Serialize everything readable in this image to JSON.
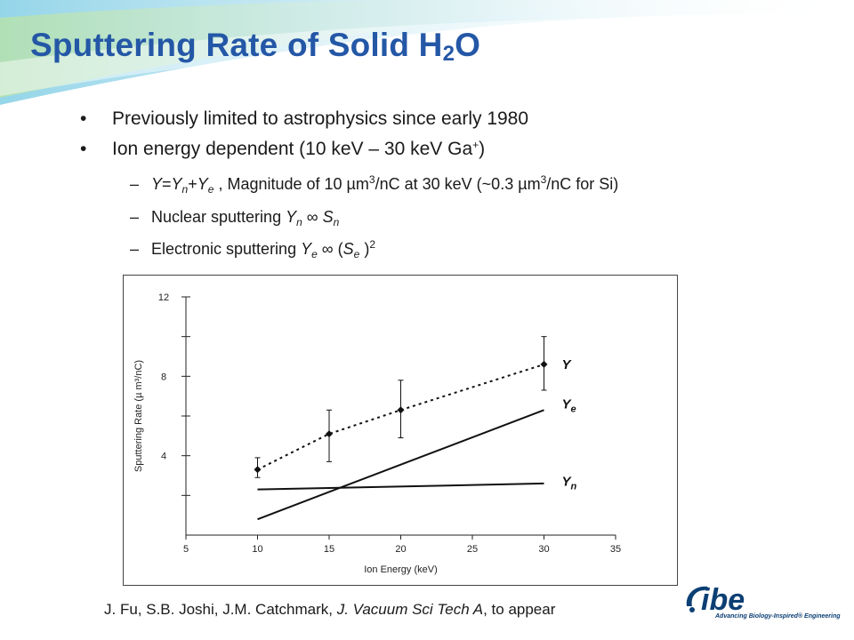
{
  "slide": {
    "title_main": "Sputtering Rate of Solid H",
    "title_sub": "2",
    "title_end": "O"
  },
  "bullets": [
    {
      "text": "Previously limited to astrophysics since early 1980"
    },
    {
      "text_a": "Ion energy dependent (10 keV – 30 keV Ga",
      "sup": "+",
      "text_b": ")"
    }
  ],
  "sub_bullets": {
    "dash": "–",
    "bullet_marker": "•",
    "eq": {
      "Y": "Y",
      "eq_sign": "=",
      "Yn_Y": "Y",
      "n": "n",
      "plus": "+",
      "Ye_Y": "Y",
      "e": "e",
      "rest_a": " , Magnitude of 10 µm",
      "sup3": "3",
      "rest_b": "/nC at 30 keV (~0.3 µm",
      "sup3b": "3",
      "rest_c": "/nC for Si)"
    },
    "nuclear": {
      "label": "Nuclear sputtering ",
      "Y": "Y",
      "n": "n",
      "prop": " ∞ ",
      "S": "S",
      "n2": "n"
    },
    "electronic": {
      "label": "Electronic sputtering ",
      "Y": "Y",
      "e": "e",
      "prop": " ∞ (",
      "S": "S",
      "e2": "e",
      "close": " )",
      "sup2": "2"
    }
  },
  "chart_data": {
    "type": "line",
    "xlabel": "Ion Energy (keV)",
    "ylabel": "Sputtering Rate (µ m³/nC)",
    "xlim": [
      5,
      35
    ],
    "ylim": [
      0,
      12
    ],
    "x_ticks": [
      5,
      10,
      15,
      20,
      25,
      30,
      35
    ],
    "y_ticks_labeled": [
      4,
      8,
      12
    ],
    "y_ticks_minor": [
      2,
      6,
      10
    ],
    "grid": false,
    "legend": "inline-right",
    "series": [
      {
        "name": "Y",
        "style": "dotted-with-markers",
        "x": [
          10,
          15,
          20,
          30
        ],
        "y": [
          3.3,
          5.1,
          6.3,
          8.6
        ],
        "err_low": [
          2.9,
          3.7,
          4.9,
          7.3
        ],
        "err_high": [
          3.9,
          6.3,
          7.8,
          10.0
        ]
      },
      {
        "name": "Ye",
        "label_base": "Y",
        "label_sub": "e",
        "style": "solid",
        "x": [
          10,
          30
        ],
        "y": [
          0.8,
          6.3
        ]
      },
      {
        "name": "Yn",
        "label_base": "Y",
        "label_sub": "n",
        "style": "solid",
        "x": [
          10,
          30
        ],
        "y": [
          2.3,
          2.6
        ]
      }
    ]
  },
  "citation": {
    "authors": "J. Fu, S.B. Joshi, J.M. Catchmark, ",
    "journal": "J. Vacuum Sci Tech A",
    "tail": ", to appear"
  },
  "logo": {
    "text": "ibe",
    "tagline": "Advancing Biology-Inspired® Engineering"
  },
  "colors": {
    "title": "#2457a6",
    "logo": "#0c3f74",
    "swoosh": "#9fd0e4"
  }
}
